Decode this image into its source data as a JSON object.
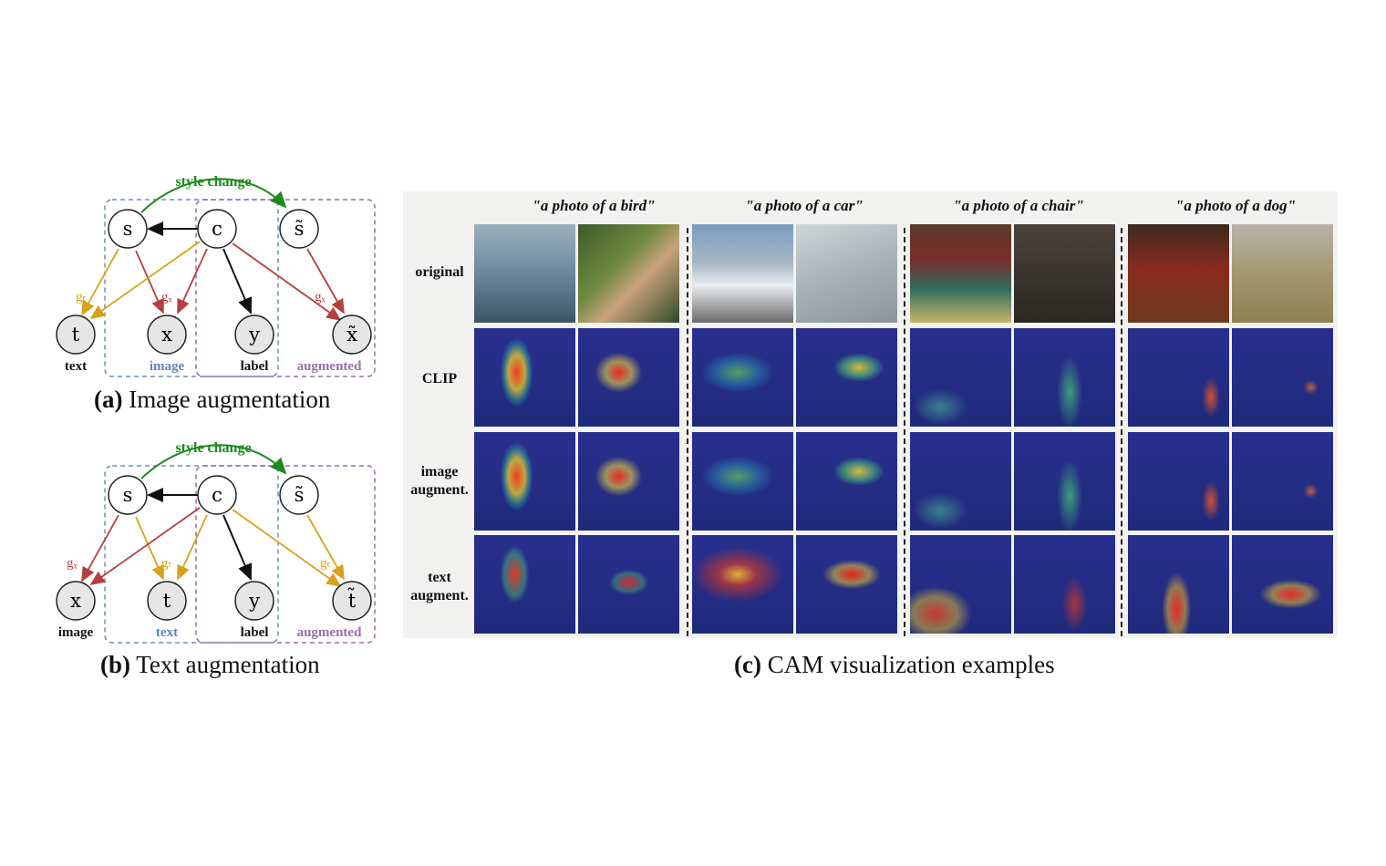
{
  "figure": {
    "panel_a": {
      "caption_label": "(a)",
      "caption_text": "Image augmentation",
      "arrow_label": "style change",
      "nodes": {
        "s": "s",
        "c": "c",
        "s_tilde": "s̃",
        "t": "t",
        "x": "x",
        "y": "y",
        "x_tilde": "x̃"
      },
      "edge_labels": {
        "gt": "gₜ",
        "gx": "gₓ",
        "gx2": "gₓ"
      },
      "node_labels": {
        "t": "text",
        "x": "image",
        "y": "label",
        "x_tilde": "augmented"
      }
    },
    "panel_b": {
      "caption_label": "(b)",
      "caption_text": "Text augmentation",
      "arrow_label": "style change",
      "nodes": {
        "s": "s",
        "c": "c",
        "s_tilde": "s̃",
        "x": "x",
        "t": "t",
        "y": "y",
        "t_tilde": "t̃"
      },
      "edge_labels": {
        "gx": "gₓ",
        "gt": "gₜ",
        "gt2": "gₜ"
      },
      "node_labels": {
        "x": "image",
        "t": "text",
        "y": "label",
        "t_tilde": "augmented"
      }
    },
    "panel_c": {
      "caption_label": "(c)",
      "caption_text": "CAM visualization examples",
      "columns": [
        "\"a photo of a bird\"",
        "\"a photo of a car\"",
        "\"a photo of a chair\"",
        "\"a photo of a dog\""
      ],
      "rows": [
        "original",
        "CLIP",
        "image augment.",
        "text augment."
      ]
    },
    "colors": {
      "style_change": "#1e8a1e",
      "gt": "#d9a21c",
      "gx": "#b5403f",
      "causal": "#111111",
      "box_image": "#6f8fb5",
      "box_augmented": "#9a6fa8",
      "text_label_image": "#5f86b8",
      "text_label_augmented": "#9a6fa8"
    }
  }
}
